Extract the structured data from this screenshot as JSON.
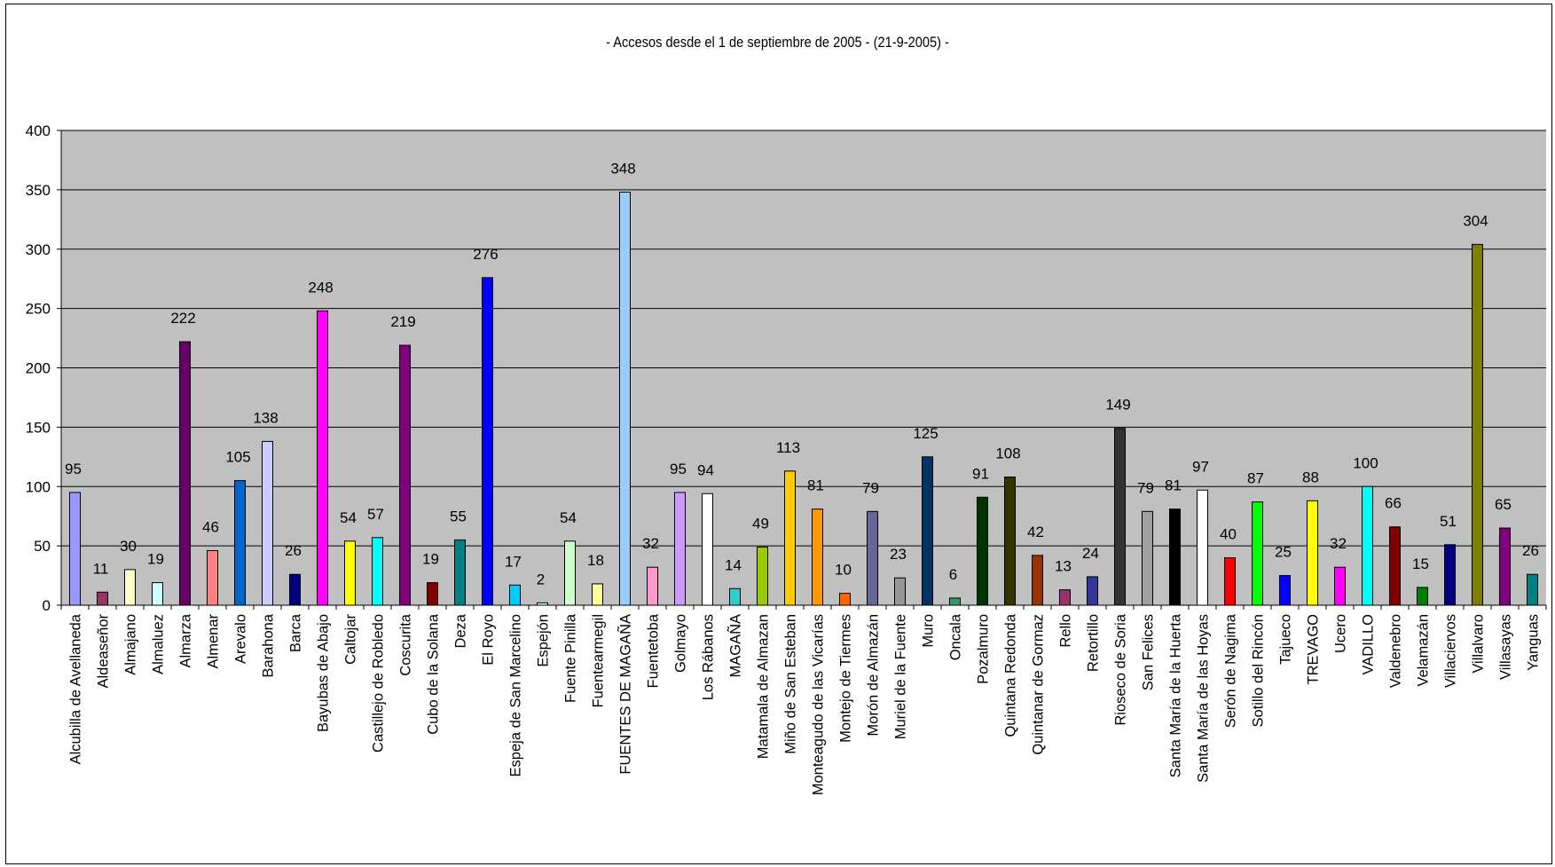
{
  "chart_data": {
    "type": "bar",
    "title": "- Accesos desde el 1 de septiembre de 2005 - (21-9-2005)  -",
    "xlabel": "",
    "ylabel": "",
    "ylim": [
      0,
      400
    ],
    "yticks": [
      0,
      50,
      100,
      150,
      200,
      250,
      300,
      350,
      400
    ],
    "grid": true,
    "legend": "none",
    "plot_background": "#c0c0c0",
    "categories": [
      "Alcubilla de Avellaneda",
      "Aldeaseñor",
      "Almajano",
      "Almaluez",
      "Almarza",
      "Almenar",
      "Arevalo",
      "Barahona",
      "Barca",
      "Bayubas de Abajo",
      "Caltojar",
      "Castillejo de Robledo",
      "Coscurita",
      "Cubo de la Solana",
      "Deza",
      "El Royo",
      "Espeja de San Marcelino",
      "Espejón",
      "Fuente Pinilla",
      "Fuentearmegil",
      "FUENTES DE MAGAÑA",
      "Fuentetoba",
      "Golmayo",
      "Los Rábanos",
      "MAGAÑA",
      "Matamala de Almazan",
      "Miño de San Esteban",
      "Monteagudo de las Vicarías",
      "Montejo de Tiermes",
      "Morón de Almazán",
      "Muriel de la Fuente",
      "Muro",
      "Oncala",
      "Pozalmuro",
      "Quintana Redonda",
      "Quintanar de Gormaz",
      "Rello",
      "Retortillo",
      "Rioseco de Soria",
      "San Felices",
      "Santa María de la Huerta",
      "Santa María de las Hoyas",
      "Serón de Nagima",
      "Sotillo del Rincón",
      "Tajueco",
      "TREVAGO",
      "Ucero",
      "VADILLO",
      "Valdenebro",
      "Velamazán",
      "Villaciervos",
      "Villalvaro",
      "Villasayas",
      "Yanguas"
    ],
    "values": [
      95,
      11,
      30,
      19,
      222,
      46,
      105,
      138,
      26,
      248,
      54,
      57,
      219,
      19,
      55,
      276,
      17,
      2,
      54,
      18,
      348,
      32,
      95,
      94,
      14,
      49,
      113,
      81,
      10,
      79,
      23,
      125,
      6,
      91,
      108,
      42,
      13,
      24,
      149,
      79,
      81,
      97,
      40,
      87,
      25,
      88,
      32,
      100,
      66,
      15,
      51,
      304,
      65,
      26
    ],
    "colors": [
      "#9999ff",
      "#993366",
      "#ffffcc",
      "#ccffff",
      "#660066",
      "#ff8080",
      "#0066cc",
      "#ccccff",
      "#000080",
      "#ff00ff",
      "#ffff00",
      "#00ffff",
      "#800080",
      "#800000",
      "#008080",
      "#0000ff",
      "#00ccff",
      "#ccffff",
      "#ccffcc",
      "#ffff99",
      "#99ccff",
      "#ff99cc",
      "#cc99ff",
      "#ffffff",
      "#33cccc",
      "#99cc00",
      "#ffcc00",
      "#ff9900",
      "#ff6600",
      "#666699",
      "#969696",
      "#003366",
      "#339966",
      "#003300",
      "#333300",
      "#993300",
      "#993366",
      "#333399",
      "#333333",
      "#a0a0a0",
      "#000000",
      "#ffffff",
      "#ff0000",
      "#00ff00",
      "#0000ff",
      "#ffff00",
      "#ff00ff",
      "#00ffff",
      "#800000",
      "#008000",
      "#000080",
      "#808000",
      "#800080",
      "#008080"
    ]
  }
}
